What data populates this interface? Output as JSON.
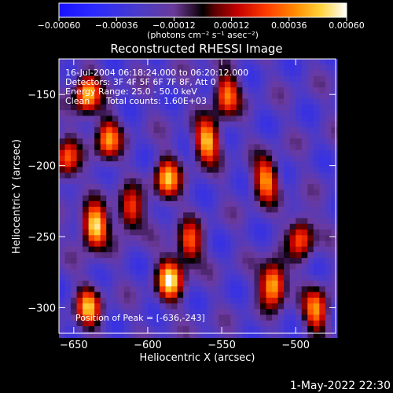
{
  "chart_data": {
    "type": "heatmap",
    "title": "Reconstructed RHESSI Image",
    "xlabel": "Heliocentric X (arcsec)",
    "ylabel": "Heliocentric Y (arcsec)",
    "xlim": [
      -660,
      -473
    ],
    "ylim": [
      -318,
      -125
    ],
    "x_ticks": [
      {
        "value": -650,
        "label": "−650"
      },
      {
        "value": -600,
        "label": "−600"
      },
      {
        "value": -550,
        "label": "−550"
      },
      {
        "value": -500,
        "label": "−500"
      }
    ],
    "y_ticks": [
      {
        "value": -150,
        "label": "−150"
      },
      {
        "value": -200,
        "label": "−200"
      },
      {
        "value": -250,
        "label": "−250"
      },
      {
        "value": -300,
        "label": "−300"
      }
    ],
    "colorbar": {
      "range": [
        -0.0006,
        0.0006
      ],
      "tick_labels": [
        "−0.00060",
        "−0.00036",
        "−0.00012",
        "0.00012",
        "0.00036",
        "0.00060"
      ],
      "unit": "(photons cm⁻² s⁻¹ asec⁻²)"
    },
    "info_lines": [
      "16-Jul-2004 06:18:24.000 to 06:20:12.000",
      "Detectors: 3F 4F 5F 6F 7F 8F, Att 0",
      "Energy Range: 25.0 - 50.0 keV",
      "Clean      Total counts: 1.60E+03"
    ],
    "peak_label": "Position of Peak = [-636,-243]",
    "peak_position": [
      -636,
      -243
    ],
    "grid": false,
    "bright_regions": [
      {
        "x": -636,
        "y": -243,
        "value": 0.0006
      },
      {
        "x": -641,
        "y": -150,
        "value": 0.00046
      },
      {
        "x": -627,
        "y": -182,
        "value": 0.00036
      },
      {
        "x": -560,
        "y": -183,
        "value": 0.00048
      },
      {
        "x": -587,
        "y": -210,
        "value": 0.00042
      },
      {
        "x": -547,
        "y": -150,
        "value": 0.00036
      },
      {
        "x": -520,
        "y": -210,
        "value": 0.0004
      },
      {
        "x": -515,
        "y": -283,
        "value": 0.00055
      },
      {
        "x": -585,
        "y": -280,
        "value": 0.0005
      },
      {
        "x": -572,
        "y": -255,
        "value": 0.0003
      },
      {
        "x": -640,
        "y": -300,
        "value": 0.00038
      },
      {
        "x": -486,
        "y": -302,
        "value": 0.00038
      },
      {
        "x": -496,
        "y": -250,
        "value": 0.0003
      },
      {
        "x": -612,
        "y": -232,
        "value": 0.0003
      },
      {
        "x": -655,
        "y": -196,
        "value": 0.00028
      }
    ]
  },
  "footer": {
    "timestamp": "1-May-2022 22:30"
  },
  "colors": {
    "background": "#000000",
    "text": "#ffffff"
  }
}
